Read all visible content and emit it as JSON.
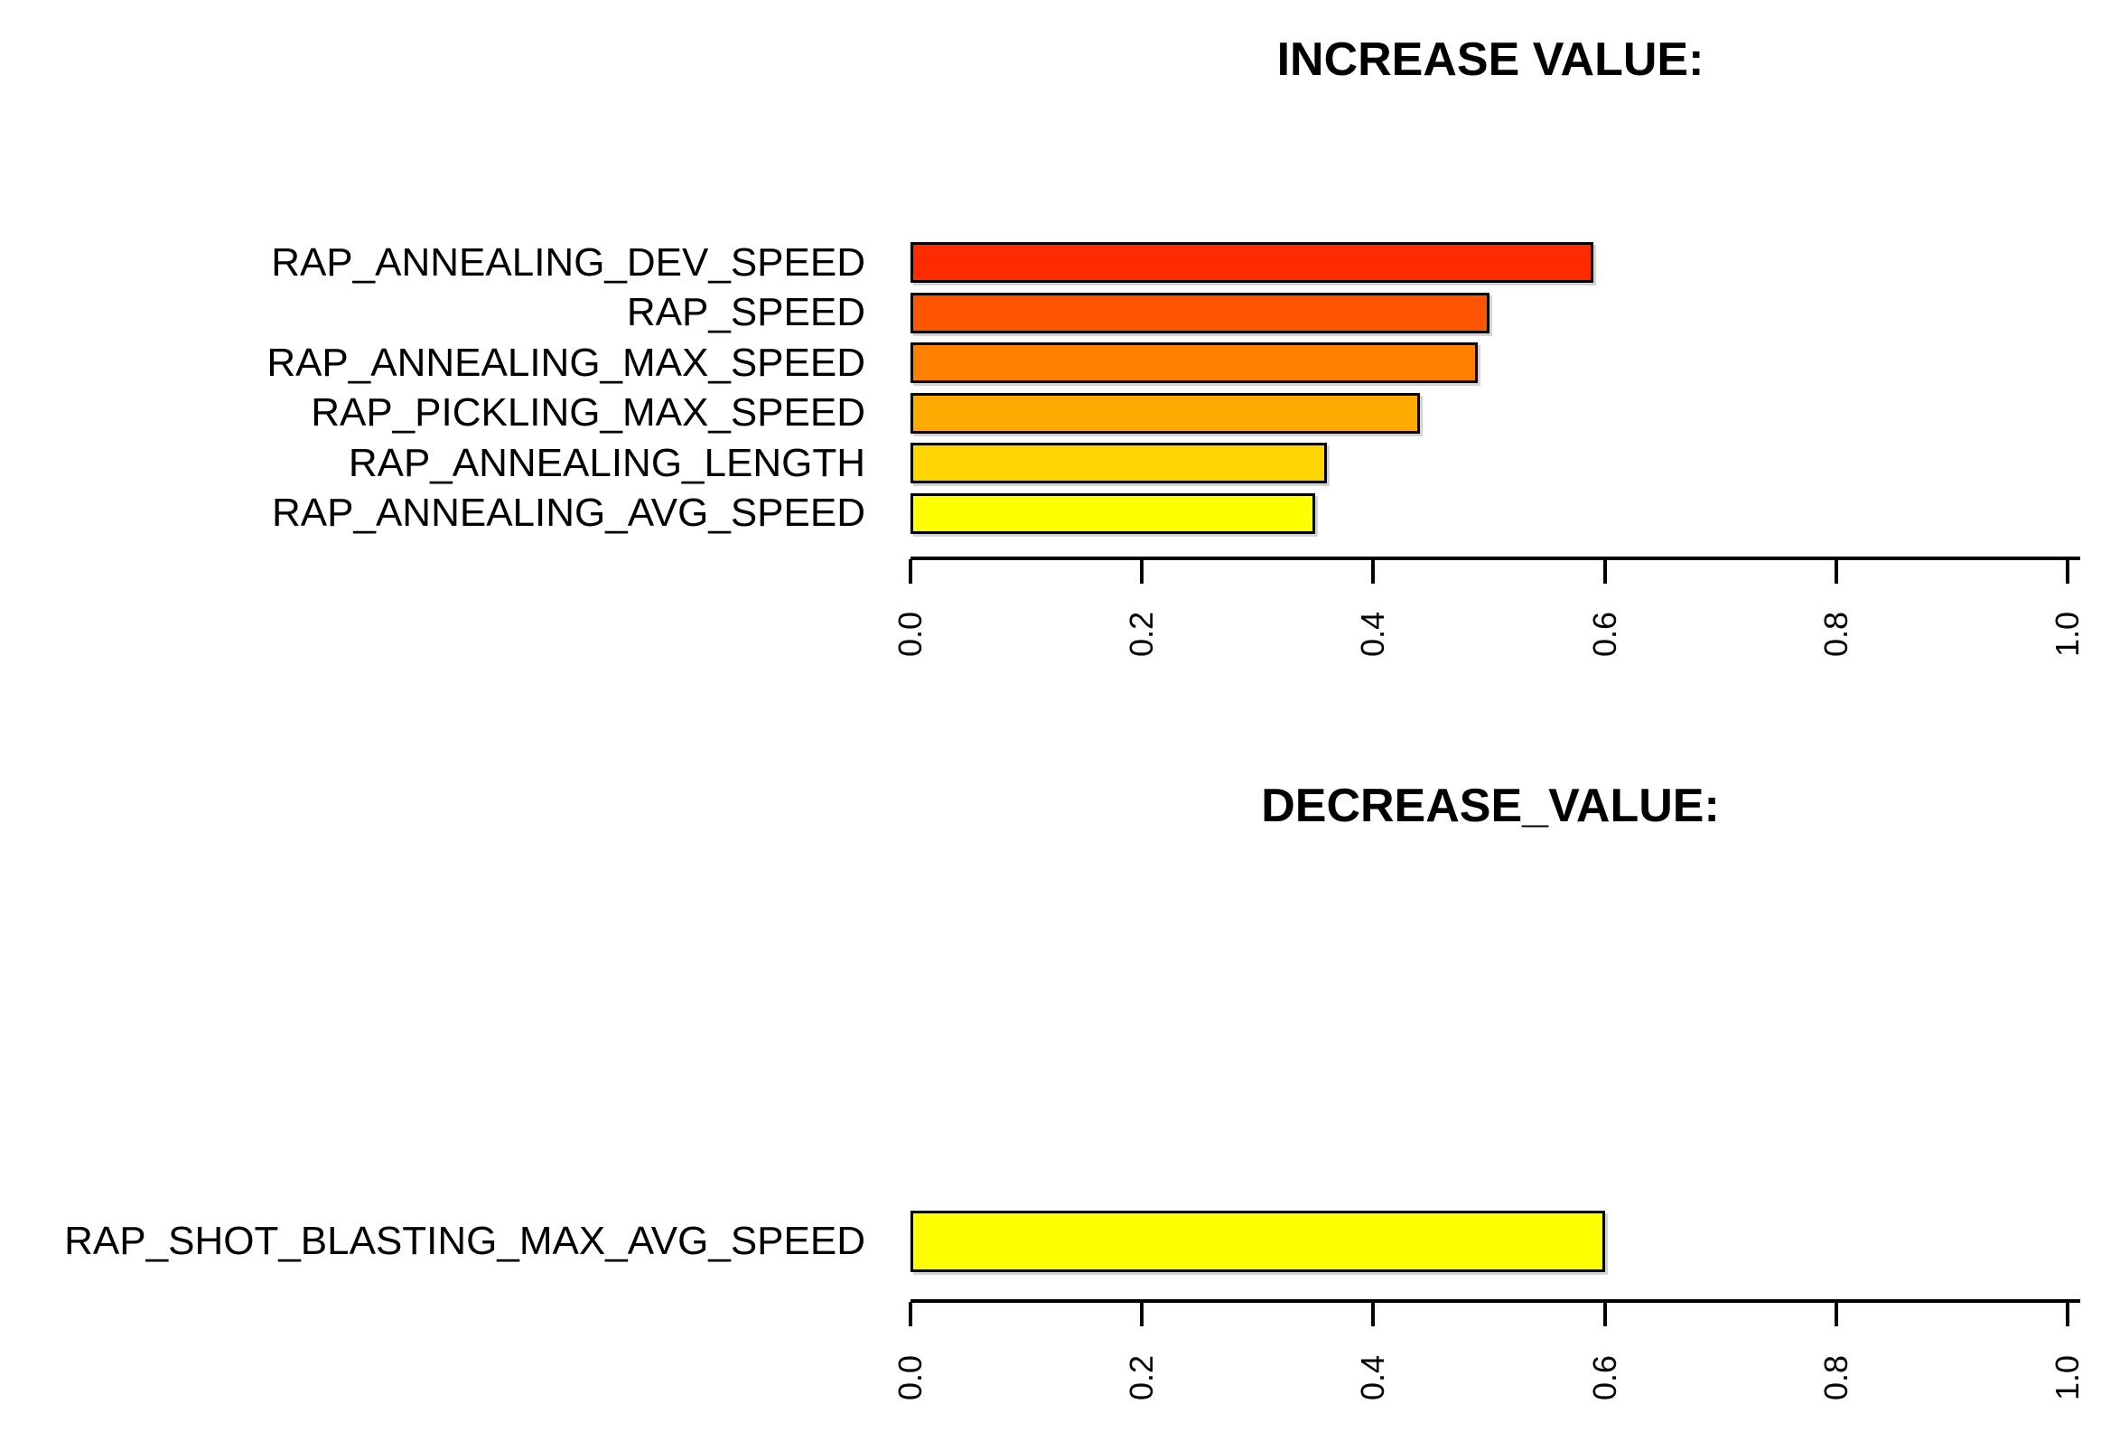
{
  "page": {
    "background_color": "#FFFFFF",
    "text_color": "#000000"
  },
  "chart_data": [
    {
      "type": "bar",
      "orientation": "horizontal",
      "title": "INCREASE VALUE:",
      "categories": [
        "RAP_ANNEALING_DEV_SPEED",
        "RAP_SPEED",
        "RAP_ANNEALING_MAX_SPEED",
        "RAP_PICKLING_MAX_SPEED",
        "RAP_ANNEALING_LENGTH",
        "RAP_ANNEALING_AVG_SPEED"
      ],
      "values": [
        0.59,
        0.5,
        0.49,
        0.44,
        0.36,
        0.35
      ],
      "bar_colors": [
        "#FF2A00",
        "#FF5500",
        "#FF8000",
        "#FFAA00",
        "#FFD500",
        "#FFFF00"
      ],
      "bar_border_color": "#000000",
      "xlabel": "",
      "ylabel": "",
      "xlim": [
        0.0,
        1.0
      ],
      "x_ticks": [
        0.0,
        0.2,
        0.4,
        0.6,
        0.8,
        1.0
      ],
      "x_tick_labels": [
        "0.0",
        "0.2",
        "0.4",
        "0.6",
        "0.8",
        "1.0"
      ],
      "x_tick_label_rotation": "vertical",
      "grid": false,
      "legend": "none"
    },
    {
      "type": "bar",
      "orientation": "horizontal",
      "title": "DECREASE_VALUE:",
      "categories": [
        "RAP_SHOT_BLASTING_MAX_AVG_SPEED"
      ],
      "values": [
        0.6
      ],
      "bar_colors": [
        "#FFFF00"
      ],
      "bar_border_color": "#000000",
      "xlabel": "",
      "ylabel": "",
      "xlim": [
        0.0,
        1.0
      ],
      "x_ticks": [
        0.0,
        0.2,
        0.4,
        0.6,
        0.8,
        1.0
      ],
      "x_tick_labels": [
        "0.0",
        "0.2",
        "0.4",
        "0.6",
        "0.8",
        "1.0"
      ],
      "x_tick_label_rotation": "vertical",
      "grid": false,
      "legend": "none"
    }
  ]
}
